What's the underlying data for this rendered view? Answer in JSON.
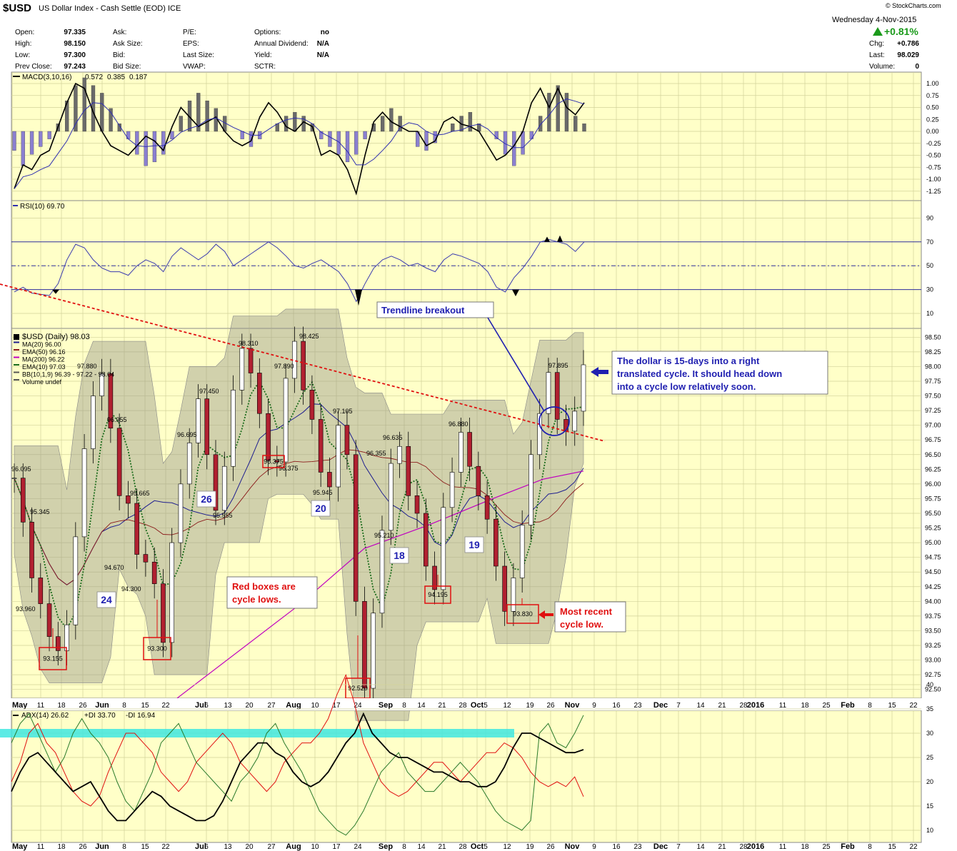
{
  "header": {
    "symbol": "$USD",
    "description": "US Dollar Index - Cash Settle (EOD) ICE",
    "copyright": "© StockCharts.com",
    "date": "Wednesday  4-Nov-2015",
    "pct_change": "+0.81%",
    "quote_left": [
      {
        "label": "Open:",
        "value": "97.335"
      },
      {
        "label": "High:",
        "value": "98.150"
      },
      {
        "label": "Low:",
        "value": "97.300"
      },
      {
        "label": "Prev Close:",
        "value": "97.243"
      }
    ],
    "quote_mid": [
      "Ask:",
      "Ask Size:",
      "Bid:",
      "Bid Size:"
    ],
    "quote_mid2": [
      "P/E:",
      "EPS:",
      "Last Size:",
      "VWAP:"
    ],
    "quote_mid3": [
      {
        "label": "Options:",
        "value": "no"
      },
      {
        "label": "Annual Dividend:",
        "value": "N/A"
      },
      {
        "label": "Yield:",
        "value": "N/A"
      },
      {
        "label": "SCTR:",
        "value": ""
      }
    ],
    "quote_right": [
      {
        "label": "Chg:",
        "value": "+0.786"
      },
      {
        "label": "Last:",
        "value": "98.029"
      },
      {
        "label": "Volume:",
        "value": "0"
      }
    ]
  },
  "macd": {
    "label": "MACD(3,10,16)",
    "values": [
      "0.572",
      "0.385",
      "0.187"
    ],
    "ticks": [
      "1.00",
      "0.75",
      "0.50",
      "0.25",
      "0.00",
      "-0.25",
      "-0.50",
      "-0.75",
      "-1.00",
      "-1.25"
    ]
  },
  "rsi": {
    "label": "RSI(10) 69.70",
    "ticks": [
      "90",
      "70",
      "50",
      "30",
      "10"
    ]
  },
  "price": {
    "legend": [
      {
        "text": "$USD (Daily) 98.03",
        "color": "#000000"
      },
      {
        "text": "MA(20) 96.00",
        "color": "#1f1f8f"
      },
      {
        "text": "EMA(50) 96.16",
        "color": "#8b1a1a"
      },
      {
        "text": "MA(200) 96.22",
        "color": "#c000c0"
      },
      {
        "text": "EMA(10) 97.03",
        "color": "#1a6b1a"
      },
      {
        "text": "BB(10,1,9) 96.39 - 97.22 - 98.04",
        "color": "#555555"
      },
      {
        "text": "Volume undef",
        "color": "#555555"
      }
    ],
    "ticks": [
      "98.50",
      "98.25",
      "98.00",
      "97.75",
      "97.50",
      "97.25",
      "97.00",
      "96.75",
      "96.50",
      "96.25",
      "96.00",
      "95.75",
      "95.50",
      "95.25",
      "95.00",
      "94.75",
      "94.50",
      "94.25",
      "94.00",
      "93.75",
      "93.50",
      "93.25",
      "93.00",
      "92.75",
      "92.50"
    ],
    "price_labels": [
      {
        "text": "96.095"
      },
      {
        "text": "95.345"
      },
      {
        "text": "93.960"
      },
      {
        "text": "97.880"
      },
      {
        "text": "96.955"
      },
      {
        "text": "95.665"
      },
      {
        "text": "94.670"
      },
      {
        "text": "94.300"
      },
      {
        "text": "96.695"
      },
      {
        "text": "97.450"
      },
      {
        "text": "95.555"
      },
      {
        "text": "98.310"
      },
      {
        "text": "97.890"
      },
      {
        "text": "98.425"
      },
      {
        "text": "96.375"
      },
      {
        "text": "97.105"
      },
      {
        "text": "95.945"
      },
      {
        "text": "96.355"
      },
      {
        "text": "96.635"
      },
      {
        "text": "95.210"
      },
      {
        "text": "96.880"
      },
      {
        "text": "97.895"
      }
    ],
    "cycle_lows": [
      "93.155",
      "93.300",
      "96.375",
      "92.520",
      "94.195",
      "93.830"
    ],
    "cycle_counts": [
      "24",
      "26",
      "20",
      "18",
      "19"
    ],
    "annotations": {
      "trendline": "Trendline breakout",
      "red_boxes": [
        "Red boxes are",
        "cycle lows."
      ],
      "most_recent": [
        "Most recent",
        "cycle low."
      ],
      "dollar_note": [
        "The dollar is 15-days into a right",
        "translated cycle. It should head down",
        "into a cycle low relatively soon."
      ]
    }
  },
  "x_axis": {
    "labels": [
      "May",
      "11",
      "18",
      "26",
      "Jun",
      "8",
      "15",
      "22",
      "Jul",
      "6",
      "13",
      "20",
      "27",
      "Aug",
      "10",
      "17",
      "24",
      "Sep",
      "8",
      "14",
      "21",
      "28",
      "Oct",
      "5",
      "12",
      "19",
      "26",
      "Nov",
      "9",
      "16",
      "23",
      "Dec",
      "7",
      "14",
      "21",
      "28",
      "2016",
      "11",
      "18",
      "25",
      "Feb",
      "8",
      "15",
      "22"
    ],
    "bold": [
      "May",
      "Jun",
      "Jul",
      "Aug",
      "Sep",
      "Oct",
      "Nov",
      "Dec",
      "2016",
      "Feb"
    ]
  },
  "adx": {
    "label_parts": [
      {
        "text": "ADX(14) 26.62",
        "color": "#000000"
      },
      {
        "text": "+DI 33.70",
        "color": "#1a6b1a"
      },
      {
        "text": "-DI 16.94",
        "color": "#d00000"
      }
    ],
    "ticks": [
      "40",
      "35",
      "30",
      "25",
      "20",
      "15",
      "10"
    ]
  },
  "chart_data": {
    "type": "line",
    "title": "$USD US Dollar Index - Cash Settle (EOD) ICE",
    "price_range": [
      92.35,
      98.65
    ],
    "cycle_lows": [
      {
        "date": "2015-05-15",
        "value": 93.155
      },
      {
        "date": "2015-06-18",
        "value": 93.3
      },
      {
        "date": "2015-07-24",
        "value": 96.375
      },
      {
        "date": "2015-08-24",
        "value": 92.52
      },
      {
        "date": "2015-09-17",
        "value": 94.195
      },
      {
        "date": "2015-10-15",
        "value": 93.83
      }
    ],
    "cycle_lengths_days": [
      24,
      26,
      20,
      18,
      19
    ],
    "close_series": [
      96.1,
      95.35,
      94.4,
      93.96,
      93.4,
      93.16,
      93.6,
      95.1,
      96.6,
      97.5,
      97.88,
      96.95,
      95.8,
      95.67,
      94.8,
      94.67,
      94.3,
      93.3,
      95.0,
      96.0,
      96.7,
      97.45,
      96.5,
      95.55,
      96.3,
      97.6,
      98.31,
      97.89,
      97.2,
      96.4,
      96.375,
      97.8,
      98.43,
      97.6,
      97.1,
      96.2,
      95.95,
      97.0,
      96.5,
      94.0,
      92.52,
      93.8,
      95.21,
      96.35,
      96.64,
      95.8,
      95.5,
      94.6,
      94.2,
      95.6,
      96.2,
      96.88,
      96.3,
      95.8,
      95.4,
      94.6,
      93.83,
      94.4,
      95.3,
      96.5,
      97.2,
      97.9,
      97.1,
      96.9,
      97.24,
      98.03
    ],
    "annotations": [
      "Trendline breakout",
      "Red boxes are cycle lows.",
      "Most recent cycle low.",
      "The dollar is 15-days into a right translated cycle. It should head down into a cycle low relatively soon."
    ],
    "indicators": {
      "macd": [
        0.572,
        0.385,
        0.187
      ],
      "rsi": 69.7,
      "adx": 26.62,
      "plus_di": 33.7,
      "minus_di": 16.94
    },
    "grid": true
  }
}
